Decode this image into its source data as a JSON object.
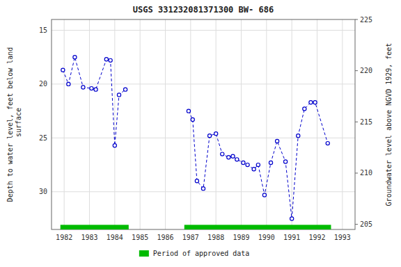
{
  "chart_data": {
    "type": "line",
    "title": "USGS 331232081371300 BW- 686",
    "y_label": "Depth to water level, feet below land\n surface",
    "y2_label": "Groundwater level above NGVD 1929, feet",
    "xlim": [
      1981.5,
      1993.5
    ],
    "xticks": [
      1982,
      1983,
      1984,
      1985,
      1986,
      1987,
      1988,
      1989,
      1990,
      1991,
      1992,
      1993
    ],
    "ylim": [
      33.5,
      14.0
    ],
    "yticks": [
      15,
      20,
      25,
      30
    ],
    "y2lim": [
      204.5,
      225.0
    ],
    "y2ticks": [
      205,
      210,
      215,
      220,
      225
    ],
    "grid": true,
    "legend": "bottom",
    "series": [
      {
        "type": "line",
        "color": "#0000cc",
        "marker": "circle",
        "line_style": "dashed",
        "x": [
          1981.95,
          1982.17,
          1982.42,
          1982.75,
          1983.08,
          1983.25,
          1983.67,
          1983.83,
          1984.0,
          1984.17,
          1984.42
        ],
        "values": [
          18.7,
          20.0,
          17.5,
          20.3,
          20.4,
          20.5,
          17.7,
          17.8,
          25.7,
          21.0,
          20.5
        ]
      },
      {
        "type": "line",
        "color": "#0000cc",
        "marker": "circle",
        "line_style": "dashed",
        "x": [
          1986.92,
          1987.08,
          1987.25,
          1987.5,
          1987.75,
          1988.0,
          1988.25,
          1988.5,
          1988.67,
          1988.83,
          1989.08,
          1989.25,
          1989.5,
          1989.67,
          1989.92,
          1990.17,
          1990.42,
          1990.75,
          1991.0,
          1991.25,
          1991.5,
          1991.75,
          1991.92,
          1992.42
        ],
        "values": [
          22.5,
          23.3,
          29.0,
          29.7,
          24.8,
          24.6,
          26.5,
          26.8,
          26.7,
          27.0,
          27.3,
          27.5,
          27.9,
          27.5,
          30.3,
          27.3,
          25.3,
          27.2,
          32.5,
          24.8,
          22.3,
          21.7,
          21.7,
          25.5
        ]
      },
      {
        "type": "span",
        "name": "Period of approved data",
        "color": "#00bb00",
        "values": [
          [
            1981.85,
            1984.55
          ],
          [
            1986.75,
            1992.55
          ]
        ]
      }
    ]
  }
}
